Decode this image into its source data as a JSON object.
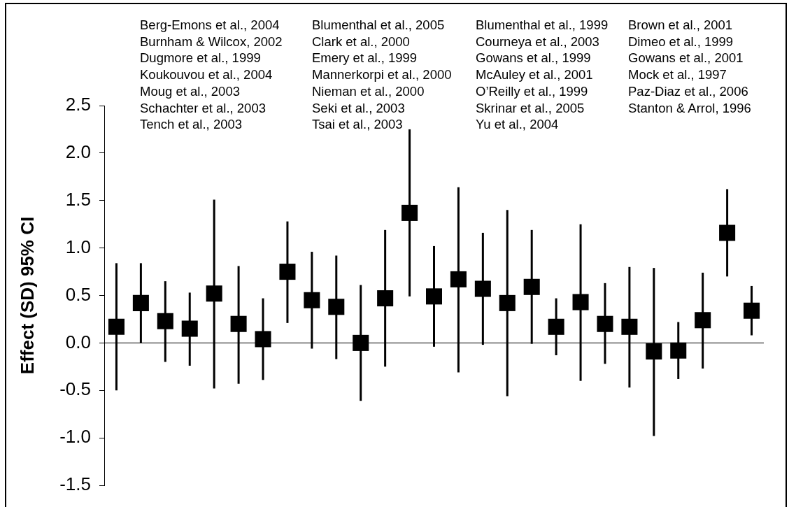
{
  "chart_data": {
    "type": "scatter",
    "ylabel": "Effect (SD) 95% CI",
    "categories": [
      null,
      null,
      null,
      null,
      null,
      null,
      null,
      null,
      null,
      null,
      null,
      null,
      null,
      null,
      null,
      null,
      null,
      null,
      null,
      null,
      null,
      null,
      null,
      null,
      null,
      null,
      null
    ],
    "values": [
      0.17,
      0.42,
      0.23,
      0.15,
      0.52,
      0.2,
      0.04,
      0.75,
      0.45,
      0.38,
      0.0,
      0.47,
      1.37,
      0.49,
      0.67,
      0.57,
      0.42,
      0.59,
      0.17,
      0.43,
      0.2,
      0.17,
      -0.09,
      -0.08,
      0.24,
      1.16,
      0.34
    ],
    "errors": [
      [
        -0.5,
        0.84
      ],
      [
        0.0,
        0.84
      ],
      [
        -0.2,
        0.65
      ],
      [
        -0.24,
        0.53
      ],
      [
        -0.48,
        1.51
      ],
      [
        -0.43,
        0.81
      ],
      [
        -0.39,
        0.47
      ],
      [
        0.21,
        1.28
      ],
      [
        -0.06,
        0.96
      ],
      [
        -0.17,
        0.92
      ],
      [
        -0.61,
        0.61
      ],
      [
        -0.25,
        1.19
      ],
      [
        0.49,
        2.25
      ],
      [
        -0.04,
        1.02
      ],
      [
        -0.31,
        1.64
      ],
      [
        -0.02,
        1.16
      ],
      [
        -0.56,
        1.4
      ],
      [
        -0.01,
        1.19
      ],
      [
        -0.13,
        0.47
      ],
      [
        -0.4,
        1.25
      ],
      [
        -0.22,
        0.63
      ],
      [
        -0.47,
        0.8
      ],
      [
        -0.98,
        0.79
      ],
      [
        -0.38,
        0.22
      ],
      [
        -0.27,
        0.74
      ],
      [
        0.7,
        1.62
      ],
      [
        0.08,
        0.6
      ]
    ],
    "color": "#000000",
    "marker": "square",
    "ylim": [
      -1.5,
      2.5
    ],
    "yticks": [
      -1.5,
      {
        "value": -1,
        "label": "-1.0"
      },
      -0.5,
      {
        "value": 0,
        "label": "0.0"
      },
      0.5,
      {
        "value": 1,
        "label": "1.0"
      },
      1.5,
      {
        "value": 2,
        "label": "2.0"
      },
      2.5
    ],
    "tick_labels": "y",
    "ref_lines": [
      {
        "axis": "y",
        "value": 0,
        "color": "#000000"
      }
    ],
    "annotations": [
      "Berg-Emons et al., 2004",
      "Burnham & Wilcox, 2002",
      "Dugmore et al., 1999",
      "Koukouvou et al., 2004",
      "Moug et al., 2003",
      "Schachter et al., 2003",
      "Tench et al., 2003",
      "Blumenthal et al., 2005",
      "Clark et al., 2000",
      "Emery et al., 1999",
      "Mannerkorpi et al., 2000",
      "Nieman et al., 2000",
      "Seki et al., 2003",
      "Tsai et al., 2003",
      "Blumenthal et al., 1999",
      "Courneya et al., 2003",
      "Gowans et al., 1999",
      "McAuley et al., 2001",
      "O’Reilly et al., 1999",
      "Skrinar et al., 2005",
      "Yu et al., 2004",
      "Brown et al., 2001",
      "Dimeo et al., 1999",
      "Gowans et al., 2001",
      "Mock et al., 1997",
      "Paz-Diaz et al., 2006",
      "Stanton & Arrol, 1996"
    ]
  }
}
